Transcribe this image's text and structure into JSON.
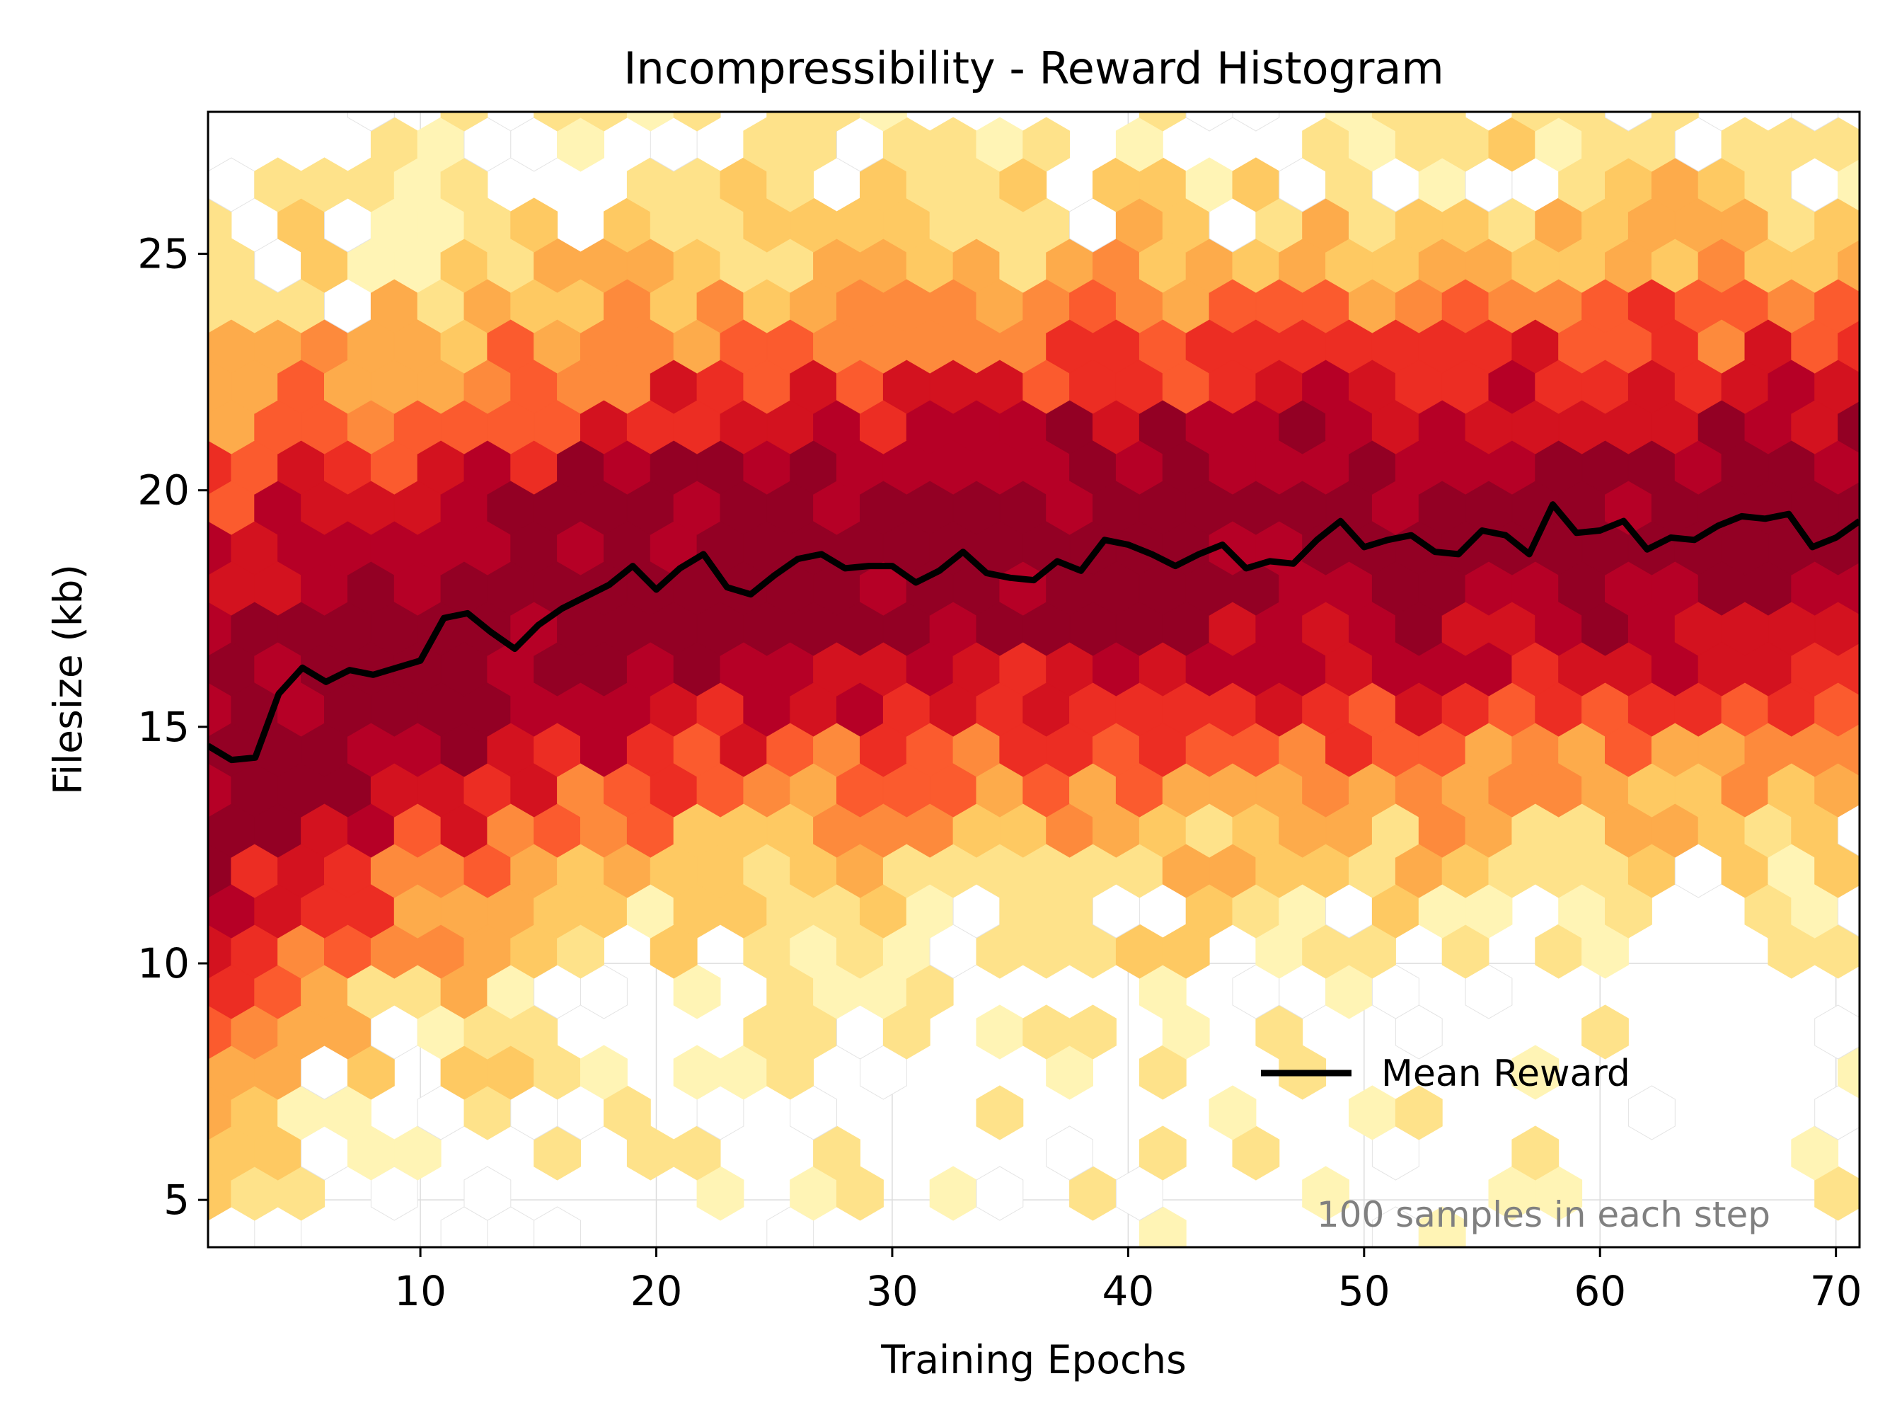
{
  "chart_data": {
    "type": "heatmap",
    "subtype": "hexbin",
    "title": "Incompressibility - Reward Histogram",
    "xlabel": "Training Epochs",
    "ylabel": "Filesize (kb)",
    "xlim": [
      1,
      71
    ],
    "ylim": [
      4,
      28
    ],
    "xticks": [
      10,
      20,
      30,
      40,
      50,
      60,
      70
    ],
    "yticks": [
      5,
      10,
      15,
      20,
      25
    ],
    "grid": true,
    "colormap": "YlOrRd",
    "legend": {
      "placement": "lower-right",
      "entries": [
        "Mean Reward"
      ]
    },
    "annotation": "100 samples in each step",
    "series": [
      {
        "name": "Mean Reward",
        "color": "#000000",
        "x": [
          1,
          2,
          3,
          4,
          5,
          6,
          7,
          8,
          9,
          10,
          11,
          12,
          13,
          14,
          15,
          16,
          17,
          18,
          19,
          20,
          21,
          22,
          23,
          24,
          25,
          26,
          27,
          28,
          29,
          30,
          31,
          32,
          33,
          34,
          35,
          36,
          37,
          38,
          39,
          40,
          41,
          42,
          43,
          44,
          45,
          46,
          47,
          48,
          49,
          50,
          51,
          52,
          53,
          54,
          55,
          56,
          57,
          58,
          59,
          60,
          61,
          62,
          63,
          64,
          65,
          66,
          67,
          68,
          69,
          70,
          71
        ],
        "values": [
          14.6,
          14.3,
          14.35,
          15.7,
          16.25,
          15.95,
          16.2,
          16.1,
          16.25,
          16.4,
          17.3,
          17.4,
          17.0,
          16.65,
          17.15,
          17.5,
          17.75,
          18.0,
          18.4,
          17.9,
          18.35,
          18.65,
          17.95,
          17.8,
          18.2,
          18.55,
          18.65,
          18.35,
          18.4,
          18.4,
          18.05,
          18.3,
          18.7,
          18.25,
          18.15,
          18.1,
          18.5,
          18.3,
          18.95,
          18.85,
          18.65,
          18.4,
          18.65,
          18.85,
          18.35,
          18.5,
          18.45,
          18.95,
          19.35,
          18.8,
          18.95,
          19.05,
          18.7,
          18.65,
          19.15,
          19.05,
          18.65,
          19.7,
          19.1,
          19.15,
          19.35,
          18.75,
          19.0,
          18.95,
          19.25,
          19.45,
          19.4,
          19.5,
          18.8,
          19.0,
          19.35
        ]
      }
    ],
    "density_profile": {
      "description": "per-epoch vertical spread of sample filesizes shown by hexagon color",
      "epoch_anchors": [
        1,
        10,
        20,
        30,
        40,
        50,
        60,
        71
      ],
      "center": [
        15.0,
        16.8,
        18.2,
        18.5,
        18.8,
        18.9,
        19.3,
        19.4
      ],
      "spread": [
        5.0,
        4.4,
        4.0,
        3.9,
        3.9,
        3.9,
        3.8,
        3.8
      ]
    }
  }
}
